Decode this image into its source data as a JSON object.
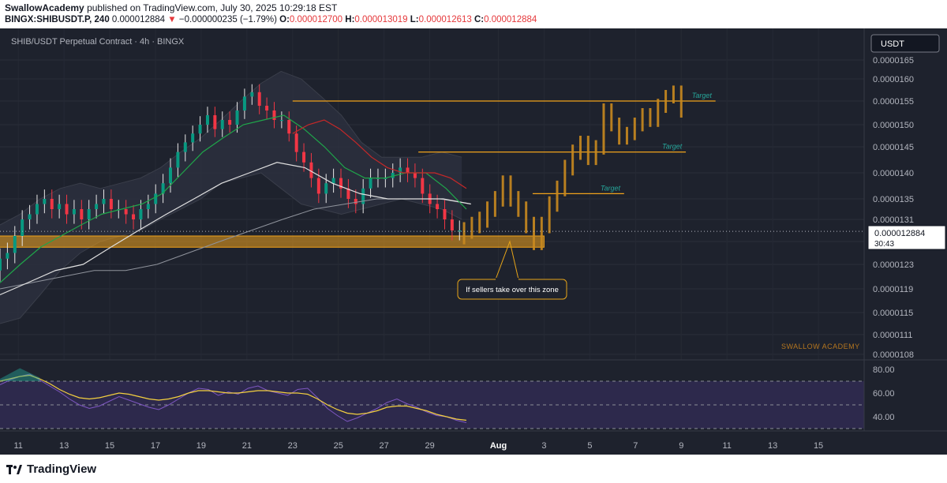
{
  "header": {
    "author": "SwallowAcademy",
    "published_text": "published on TradingView.com, July 30, 2025 10:29:18 EST",
    "symbol": "BINGX:SHIBUSDT.P, 240",
    "last_price": "0.000012884",
    "change_arrow": "▼",
    "change": "−0.000000235 (−1.79%)",
    "open_label": "O:",
    "open": "0.000012700",
    "high_label": "H:",
    "high": "0.000013019",
    "low_label": "L:",
    "low": "0.000012613",
    "close_label": "C:",
    "close": "0.000012884"
  },
  "chart_title": "SHIB/USDT Perpetual Contract · 4h · BINGX",
  "currency_label": "USDT",
  "price_tag": {
    "price": "0.000012884",
    "countdown": "30:43"
  },
  "watermark": "SWALLOW ACADEMY",
  "annotation": "If sellers take over this zone",
  "target_labels": [
    "Target",
    "Target",
    "Target"
  ],
  "footer_logo": "TradingView",
  "colors": {
    "background": "#1e222d",
    "up": "#089981",
    "down": "#f23645",
    "wick_up": "#e8e8e8",
    "zone": "#f0a21b",
    "projection": "#c98a1f",
    "target_text": "#26a69a",
    "ema_short": "#1fa64a",
    "ema_mid": "#c62828",
    "ma_long": "#e0e0e0",
    "rsi_line": "#7e57c2",
    "rsi_ma": "#f4d03f",
    "rsi_band": "#3a2f66"
  },
  "chart_data": [
    {
      "type": "candlestick",
      "title": "SHIB/USDT Perpetual Contract · 4h · BINGX",
      "y_axis_ticks": [
        "0.0000165",
        "0.0000160",
        "0.0000155",
        "0.0000150",
        "0.0000145",
        "0.0000140",
        "0.0000135",
        "0.0000131",
        "0.0000127",
        "0.0000123",
        "0.0000119",
        "0.0000115",
        "0.0000111",
        "0.0000108"
      ],
      "ylim": [
        1.08e-05,
        1.65e-05
      ],
      "x_axis_ticks": [
        "11",
        "13",
        "15",
        "17",
        "19",
        "21",
        "23",
        "25",
        "27",
        "29",
        "Aug",
        "3",
        "5",
        "7",
        "9",
        "11",
        "13",
        "15"
      ],
      "x_tick_days": [
        11,
        13,
        15,
        17,
        19,
        21,
        23,
        25,
        27,
        29,
        32,
        34,
        36,
        38,
        40,
        42,
        44,
        46
      ],
      "x_day_range": [
        10.2,
        48
      ],
      "last_price": 1.2884e-05,
      "candles_close": [
        1.24e-05,
        1.25e-05,
        1.28e-05,
        1.31e-05,
        1.32e-05,
        1.34e-05,
        1.35e-05,
        1.33e-05,
        1.34e-05,
        1.32e-05,
        1.33e-05,
        1.31e-05,
        1.33e-05,
        1.34e-05,
        1.35e-05,
        1.33e-05,
        1.33e-05,
        1.32e-05,
        1.31e-05,
        1.33e-05,
        1.34e-05,
        1.36e-05,
        1.38e-05,
        1.41e-05,
        1.44e-05,
        1.46e-05,
        1.48e-05,
        1.5e-05,
        1.52e-05,
        1.49e-05,
        1.51e-05,
        1.5e-05,
        1.53e-05,
        1.56e-05,
        1.57e-05,
        1.54e-05,
        1.53e-05,
        1.51e-05,
        1.51e-05,
        1.48e-05,
        1.44e-05,
        1.42e-05,
        1.39e-05,
        1.36e-05,
        1.38e-05,
        1.39e-05,
        1.37e-05,
        1.35e-05,
        1.34e-05,
        1.37e-05,
        1.39e-05,
        1.39e-05,
        1.39e-05,
        1.4e-05,
        1.41e-05,
        1.4e-05,
        1.39e-05,
        1.36e-05,
        1.34e-05,
        1.33e-05,
        1.31e-05,
        1.29e-05,
        1.29e-05
      ],
      "bollinger_upper": [
        1.3e-05,
        1.32e-05,
        1.35e-05,
        1.37e-05,
        1.38e-05,
        1.37e-05,
        1.38e-05,
        1.39e-05,
        1.41e-05,
        1.44e-05,
        1.47e-05,
        1.51e-05,
        1.55e-05,
        1.59e-05,
        1.62e-05,
        1.6e-05,
        1.56e-05,
        1.52e-05,
        1.46e-05,
        1.43e-05,
        1.43e-05,
        1.43e-05,
        1.44e-05,
        1.43e-05
      ],
      "bollinger_lower": [
        1.13e-05,
        1.14e-05,
        1.18e-05,
        1.22e-05,
        1.25e-05,
        1.27e-05,
        1.28e-05,
        1.29e-05,
        1.31e-05,
        1.33e-05,
        1.35e-05,
        1.38e-05,
        1.39e-05,
        1.4e-05,
        1.37e-05,
        1.34e-05,
        1.33e-05,
        1.32e-05,
        1.33e-05,
        1.34e-05,
        1.35e-05,
        1.34e-05,
        1.33e-05,
        1.31e-05
      ],
      "ema_short": [
        1.2e-05,
        1.23e-05,
        1.26e-05,
        1.28e-05,
        1.3e-05,
        1.32e-05,
        1.33e-05,
        1.34e-05,
        1.36e-05,
        1.4e-05,
        1.44e-05,
        1.47e-05,
        1.5e-05,
        1.51e-05,
        1.52e-05,
        1.49e-05,
        1.45e-05,
        1.41e-05,
        1.39e-05,
        1.39e-05,
        1.4e-05,
        1.4e-05,
        1.37e-05,
        1.33e-05
      ],
      "ema_mid": [
        1.48e-05,
        1.5e-05,
        1.51e-05,
        1.49e-05,
        1.46e-05,
        1.43e-05,
        1.41e-05,
        1.4e-05,
        1.4e-05,
        1.4e-05,
        1.39e-05,
        1.37e-05
      ],
      "ma_long": [
        1.18e-05,
        1.2e-05,
        1.22e-05,
        1.23e-05,
        1.26e-05,
        1.29e-05,
        1.32e-05,
        1.35e-05,
        1.38e-05,
        1.4e-05,
        1.42e-05,
        1.41e-05,
        1.38e-05,
        1.36e-05,
        1.35e-05,
        1.35e-05,
        1.35e-05,
        1.34e-05
      ],
      "ma_slow": [
        1.19e-05,
        1.2e-05,
        1.21e-05,
        1.22e-05,
        1.22e-05,
        1.23e-05,
        1.25e-05,
        1.27e-05,
        1.29e-05,
        1.31e-05,
        1.33e-05,
        1.34e-05,
        1.35e-05,
        1.35e-05,
        1.35e-05,
        1.34e-05
      ],
      "support_zone": [
        1.26e-05,
        1.28e-05
      ],
      "target_levels": [
        1.55e-05,
        1.44e-05,
        1.36e-05
      ],
      "projection_close": [
        1.29e-05,
        1.3e-05,
        1.31e-05,
        1.33e-05,
        1.35e-05,
        1.38e-05,
        1.35e-05,
        1.33e-05,
        1.3e-05,
        1.27e-05,
        1.3e-05,
        1.34e-05,
        1.37e-05,
        1.41e-05,
        1.44e-05,
        1.46e-05,
        1.43e-05,
        1.45e-05,
        1.53e-05,
        1.5e-05,
        1.47e-05,
        1.48e-05,
        1.5e-05,
        1.52e-05,
        1.51e-05,
        1.54e-05,
        1.56e-05,
        1.57e-05,
        1.53e-05
      ]
    },
    {
      "type": "line",
      "title": "RSI",
      "y_axis_ticks": [
        "80.00",
        "60.00",
        "40.00"
      ],
      "ylim": [
        28,
        88
      ],
      "bands": [
        30,
        50,
        70
      ],
      "rsi": [
        67,
        71,
        74,
        76,
        71,
        66,
        61,
        55,
        50,
        47,
        49,
        53,
        57,
        54,
        51,
        48,
        46,
        50,
        55,
        60,
        64,
        63,
        58,
        61,
        59,
        64,
        66,
        62,
        60,
        58,
        63,
        64,
        56,
        47,
        41,
        36,
        39,
        43,
        47,
        52,
        55,
        51,
        48,
        44,
        41,
        40,
        37,
        35
      ],
      "rsi_ma": [
        70,
        72,
        74,
        75,
        72,
        68,
        63,
        59,
        56,
        55,
        56,
        58,
        60,
        59,
        57,
        55,
        54,
        55,
        57,
        60,
        62,
        62,
        61,
        60,
        60,
        61,
        62,
        62,
        61,
        60,
        60,
        59,
        55,
        50,
        46,
        43,
        42,
        43,
        45,
        48,
        49,
        49,
        47,
        45,
        42,
        40,
        38,
        37
      ]
    }
  ]
}
